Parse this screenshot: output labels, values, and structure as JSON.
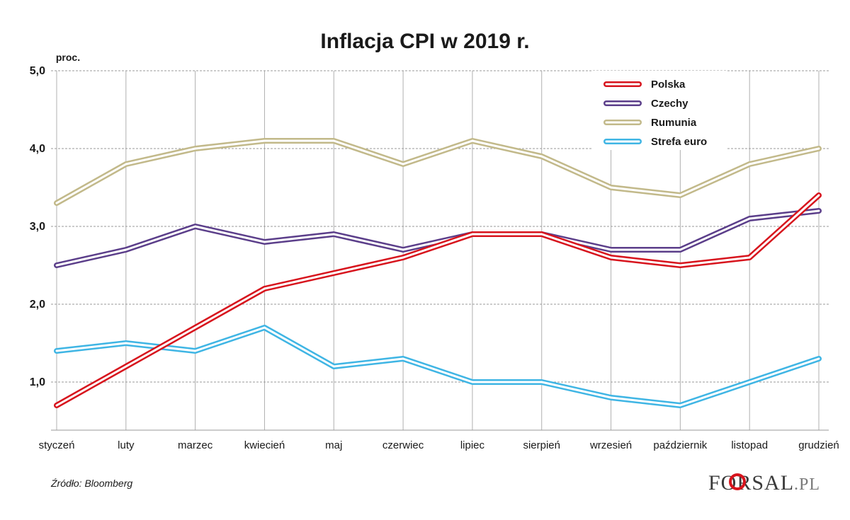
{
  "chart_data": {
    "type": "line",
    "title": "Inflacja CPI w 2019 r.",
    "ylabel": "proc.",
    "xlabel": "",
    "ylim": [
      0.3,
      5.0
    ],
    "yticks": [
      1.0,
      2.0,
      3.0,
      4.0,
      5.0
    ],
    "ytick_labels": [
      "1,0",
      "2,0",
      "3,0",
      "4,0",
      "5,0"
    ],
    "categories": [
      "styczeń",
      "luty",
      "marzec",
      "kwiecień",
      "maj",
      "czerwiec",
      "lipiec",
      "sierpień",
      "wrzesień",
      "październik",
      "listopad",
      "grudzień"
    ],
    "grid": true,
    "legend_position": "top-right",
    "series": [
      {
        "name": "Polska",
        "color": "#d7141d",
        "values": [
          0.7,
          1.2,
          1.7,
          2.2,
          2.4,
          2.6,
          2.9,
          2.9,
          2.6,
          2.5,
          2.6,
          3.4
        ]
      },
      {
        "name": "Czechy",
        "color": "#5b3e8a",
        "values": [
          2.5,
          2.7,
          3.0,
          2.8,
          2.9,
          2.7,
          2.9,
          2.9,
          2.7,
          2.7,
          3.1,
          3.2
        ]
      },
      {
        "name": "Rumunia",
        "color": "#c2b98a",
        "values": [
          3.3,
          3.8,
          4.0,
          4.1,
          4.1,
          3.8,
          4.1,
          3.9,
          3.5,
          3.4,
          3.8,
          4.0
        ]
      },
      {
        "name": "Strefa euro",
        "color": "#3fb5e4",
        "values": [
          1.4,
          1.5,
          1.4,
          1.7,
          1.2,
          1.3,
          1.0,
          1.0,
          0.8,
          0.7,
          1.0,
          1.3
        ]
      }
    ]
  },
  "source": "Źródło: Bloomberg",
  "logo": {
    "main": "FORSAL",
    "suffix": ".PL",
    "accent_color": "#d7141d"
  }
}
